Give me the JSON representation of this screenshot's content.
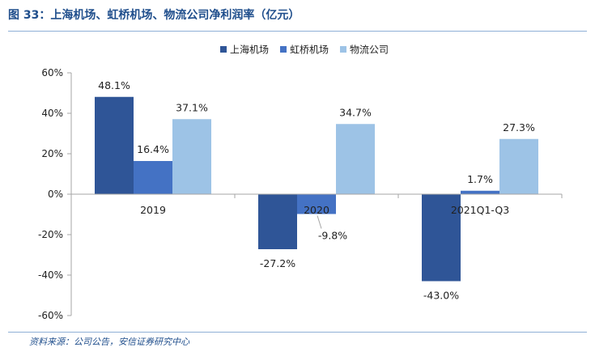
{
  "header": {
    "title": "图 33：上海机场、虹桥机场、物流公司净利润率（亿元）"
  },
  "footer": {
    "source": "资料来源：公司公告，安信证券研究中心"
  },
  "colors": {
    "title": "#1f4e8c",
    "rule": "#8fb0d6",
    "axis": "#a6a6a6"
  },
  "chart_data": {
    "type": "bar",
    "categories": [
      "2019",
      "2020",
      "2021Q1-Q3"
    ],
    "series": [
      {
        "name": "上海机场",
        "color": "#2f5597",
        "values": [
          48.1,
          -27.2,
          -43.0
        ]
      },
      {
        "name": "虹桥机场",
        "color": "#4472c4",
        "values": [
          16.4,
          -9.8,
          1.7
        ]
      },
      {
        "name": "物流公司",
        "color": "#9dc3e6",
        "values": [
          37.1,
          34.7,
          27.3
        ]
      }
    ],
    "data_labels": [
      [
        "48.1%",
        "-27.2%",
        "-43.0%"
      ],
      [
        "16.4%",
        "-9.8%",
        "1.7%"
      ],
      [
        "37.1%",
        "34.7%",
        "27.3%"
      ]
    ],
    "y_ticks": [
      60,
      40,
      20,
      0,
      -20,
      -40,
      -60
    ],
    "y_tick_labels": [
      "60%",
      "40%",
      "20%",
      "0%",
      "-20%",
      "-40%",
      "-60%"
    ],
    "ylim": [
      -60,
      60
    ],
    "unit": "%",
    "grid": false,
    "legend_position": "top-center"
  }
}
